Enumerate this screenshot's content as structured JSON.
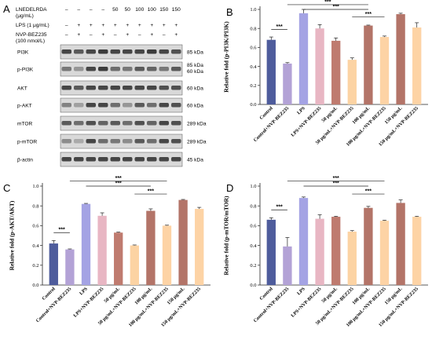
{
  "blot": {
    "letter": "A",
    "treatments": [
      {
        "label": "LNEDELRDA (μg/mL)",
        "values": [
          "–",
          "–",
          "–",
          "–",
          "50",
          "50",
          "100",
          "100",
          "150",
          "150"
        ]
      },
      {
        "label": "LPS (1 μg/mL)",
        "values": [
          "–",
          "+",
          "+",
          "+",
          "+",
          "+",
          "+",
          "+",
          "+",
          "+"
        ]
      },
      {
        "label": "NVP-BEZ235 (100 nmol/L)",
        "values": [
          "–",
          "+",
          "–",
          "+",
          "–",
          "+",
          "–",
          "+",
          "–",
          "+"
        ]
      }
    ],
    "rows": [
      {
        "name": "PI3K",
        "kda": [
          "85 kDa"
        ]
      },
      {
        "name": "p-PI3K",
        "kda": [
          "85 kDa",
          "60 kDa"
        ]
      },
      {
        "name": "AKT",
        "kda": [
          "60 kDa"
        ]
      },
      {
        "name": "p-AKT",
        "kda": [
          "60 kDa"
        ]
      },
      {
        "name": "mTOR",
        "kda": [
          "289 kDa"
        ]
      },
      {
        "name": "p-mTOR",
        "kda": [
          "289 kDa"
        ]
      },
      {
        "name": "β-actin",
        "kda": [
          "45 kDa"
        ]
      }
    ],
    "intensities": [
      [
        0.8,
        0.7,
        0.8,
        0.85,
        0.8,
        0.8,
        0.8,
        0.85,
        0.8,
        0.75
      ],
      [
        0.55,
        0.4,
        0.8,
        0.85,
        0.6,
        0.55,
        0.7,
        0.65,
        0.55,
        0.7
      ],
      [
        0.8,
        0.7,
        0.8,
        0.8,
        0.8,
        0.8,
        0.8,
        0.8,
        0.75,
        0.75
      ],
      [
        0.5,
        0.35,
        0.8,
        0.8,
        0.6,
        0.4,
        0.7,
        0.6,
        0.8,
        0.75
      ],
      [
        0.7,
        0.6,
        0.75,
        0.65,
        0.7,
        0.6,
        0.75,
        0.65,
        0.8,
        0.75
      ],
      [
        0.45,
        0.3,
        0.8,
        0.6,
        0.55,
        0.45,
        0.7,
        0.6,
        0.8,
        0.75
      ],
      [
        0.8,
        0.8,
        0.8,
        0.8,
        0.8,
        0.8,
        0.8,
        0.8,
        0.8,
        0.8
      ]
    ]
  },
  "categories": [
    "Control",
    "Control+NVP-BEZ235",
    "LPS",
    "LPS+NVP-BEZ235",
    "50 μg/mL",
    "50 μg/mL+NVP-BEZ235",
    "100 μg/mL",
    "100 μg/mL+NVP-BEZ235",
    "150 μg/mL",
    "150 μg/mL+NVP-BEZ235"
  ],
  "colors": [
    "#4e5c9c",
    "#b3a2d6",
    "#a4a3e4",
    "#e8b6c3",
    "#bf7b6f",
    "#fcd3a3",
    "#b37468",
    "#fdd3a5",
    "#b37468",
    "#fdd3a5"
  ],
  "chart_data": [
    {
      "letter": "B",
      "type": "bar",
      "ylabel": "Relative fold (p-PI3K/PI3K)",
      "ylim": [
        0,
        1.0
      ],
      "yticks": [
        "0.0",
        "0.2",
        "0.4",
        "0.6",
        "0.8",
        "1.0"
      ],
      "values": [
        0.68,
        0.43,
        0.96,
        0.8,
        0.67,
        0.47,
        0.83,
        0.71,
        0.95,
        0.81
      ],
      "errors": [
        0.03,
        0.01,
        0.04,
        0.04,
        0.03,
        0.02,
        0.005,
        0.01,
        0.01,
        0.05
      ],
      "significance": [
        {
          "from": 0,
          "to": 1,
          "label": "***"
        },
        {
          "from": 1,
          "to": 6,
          "label": "***"
        },
        {
          "from": 2,
          "to": 6,
          "label": "***"
        },
        {
          "from": 5,
          "to": 7,
          "label": "***"
        }
      ]
    },
    {
      "letter": "C",
      "type": "bar",
      "ylabel": "Relative fold (p-AKT/AKT)",
      "ylim": [
        0,
        1.0
      ],
      "yticks": [
        "0.0",
        "0.2",
        "0.4",
        "0.6",
        "0.8",
        "1.0"
      ],
      "values": [
        0.42,
        0.36,
        0.82,
        0.7,
        0.53,
        0.4,
        0.75,
        0.6,
        0.86,
        0.77
      ],
      "errors": [
        0.03,
        0.005,
        0.005,
        0.03,
        0.005,
        0.005,
        0.02,
        0.005,
        0.005,
        0.015
      ],
      "significance": [
        {
          "from": 0,
          "to": 1,
          "label": "***"
        },
        {
          "from": 1,
          "to": 7,
          "label": "***"
        },
        {
          "from": 2,
          "to": 6,
          "label": "***"
        },
        {
          "from": 5,
          "to": 7,
          "label": "***"
        }
      ]
    },
    {
      "letter": "D",
      "type": "bar",
      "ylabel": "Relative fold (p-mTOR/mTOR)",
      "ylim": [
        0,
        1.0
      ],
      "yticks": [
        "0.0",
        "0.2",
        "0.4",
        "0.6",
        "0.8",
        "1.0"
      ],
      "values": [
        0.66,
        0.39,
        0.88,
        0.67,
        0.69,
        0.54,
        0.78,
        0.65,
        0.83,
        0.69
      ],
      "errors": [
        0.02,
        0.09,
        0.01,
        0.04,
        0.005,
        0.01,
        0.015,
        0.005,
        0.03,
        0.005
      ],
      "significance": [
        {
          "from": 0,
          "to": 1,
          "label": "***"
        },
        {
          "from": 1,
          "to": 7,
          "label": "***"
        },
        {
          "from": 2,
          "to": 6,
          "label": "***"
        },
        {
          "from": 5,
          "to": 7,
          "label": "***"
        }
      ]
    }
  ]
}
